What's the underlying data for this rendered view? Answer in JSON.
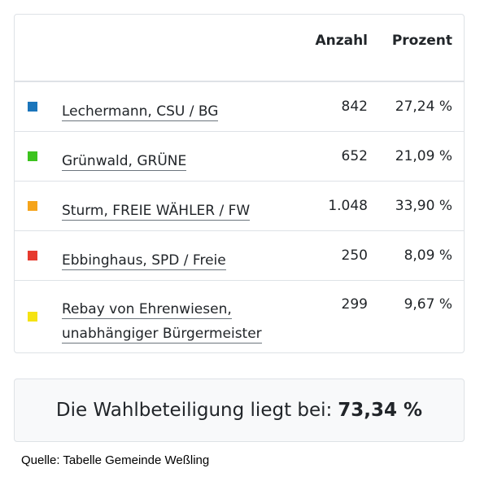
{
  "table": {
    "headers": {
      "count": "Anzahl",
      "percent": "Prozent"
    },
    "rows": [
      {
        "name": "Lechermann, CSU / BG",
        "count": "842",
        "percent": "27,24 %",
        "color": "#1b75bb"
      },
      {
        "name": "Grünwald, GRÜNE",
        "count": "652",
        "percent": "21,09 %",
        "color": "#3cc31e"
      },
      {
        "name": "Sturm, FREIE WÄHLER / FW",
        "count": "1.048",
        "percent": "33,90 %",
        "color": "#f5a41b"
      },
      {
        "name": "Ebbinghaus, SPD / Freie",
        "count": "250",
        "percent": "8,09 %",
        "color": "#e63a2e"
      },
      {
        "name": "Rebay von Ehrenwiesen, unabhängiger Bürgermeister",
        "count": "299",
        "percent": "9,67 %",
        "color": "#f5e312"
      }
    ]
  },
  "turnout": {
    "label": "Die Wahlbeteiligung liegt bei:",
    "value": "73,34 %"
  },
  "source": "Quelle: Tabelle Gemeinde Weßling"
}
